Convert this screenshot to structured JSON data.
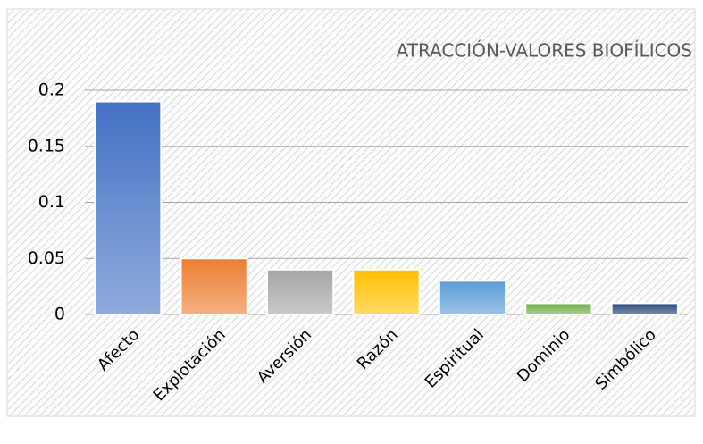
{
  "chart_data": {
    "type": "bar",
    "title": "ATRACCIÓN-VALORES BIOFÍLICOS",
    "categories": [
      "Afecto",
      "Explotación",
      "Aversión",
      "Razón",
      "Espiritual",
      "Dominio",
      "Simbólico"
    ],
    "values": [
      0.19,
      0.05,
      0.04,
      0.04,
      0.03,
      0.01,
      0.01
    ],
    "colors": [
      "#4472c4",
      "#ed7d31",
      "#a5a5a5",
      "#ffc000",
      "#5b9bd5",
      "#70ad47",
      "#264478"
    ],
    "ylim": [
      0,
      0.2
    ],
    "yticks": [
      0,
      0.05,
      0.1,
      0.15,
      0.2
    ],
    "grid": true
  }
}
